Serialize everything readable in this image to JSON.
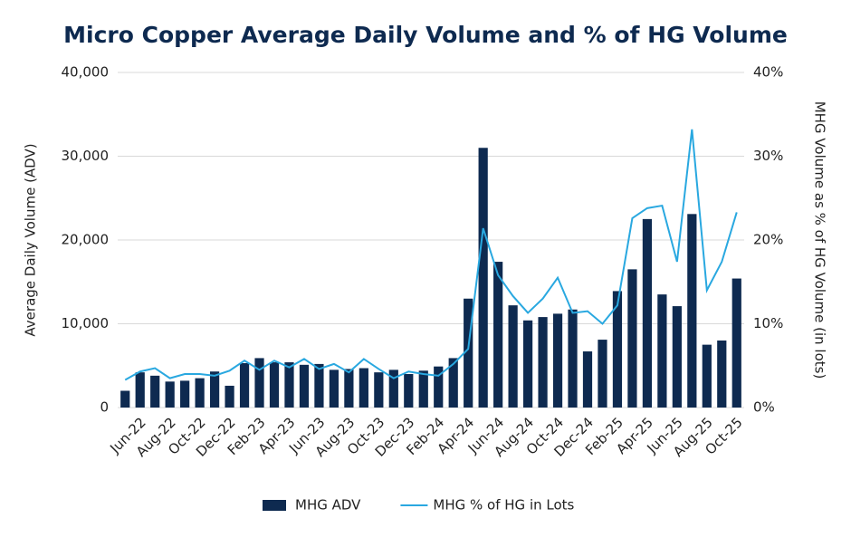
{
  "chart_data": {
    "type": "bar",
    "title": "Micro Copper Average Daily Volume and % of HG Volume",
    "y_label": "Average Daily Volume (ADV)",
    "y2_label": "MHG Volume as % of HG Volume (in lots)",
    "categories": [
      null,
      "Jun-22",
      null,
      "Aug-22",
      null,
      "Oct-22",
      null,
      "Dec-22",
      null,
      "Feb-23",
      null,
      "Apr-23",
      null,
      "Jun-23",
      null,
      "Aug-23",
      null,
      "Oct-23",
      null,
      "Dec-23",
      null,
      "Feb-24",
      null,
      "Apr-24",
      null,
      "Jun-24",
      null,
      "Aug-24",
      null,
      "Oct-24",
      null,
      "Dec-24",
      null,
      "Feb-25",
      null,
      "Apr-25",
      null,
      "Jun-25",
      null,
      "Aug-25",
      null,
      "Oct-25"
    ],
    "series": [
      {
        "name": "MHG ADV",
        "type": "bar",
        "color": "#0e2a50",
        "values": [
          2000,
          4200,
          3800,
          3100,
          3200,
          3500,
          4300,
          2600,
          5300,
          5900,
          5400,
          5400,
          5100,
          5200,
          4500,
          4600,
          4700,
          4200,
          4500,
          4000,
          4400,
          4900,
          5900,
          13000,
          31000,
          17400,
          12200,
          10400,
          10800,
          11200,
          11700,
          6700,
          8100,
          13900,
          16500,
          22500,
          13500,
          12100,
          23100,
          7500,
          8000,
          15400
        ]
      },
      {
        "name": "MHG % of HG in Lots",
        "type": "line",
        "axis": "y2",
        "color": "#29a8e0",
        "values": [
          3.3,
          4.3,
          4.7,
          3.5,
          4.0,
          4.0,
          3.8,
          4.4,
          5.6,
          4.5,
          5.6,
          4.8,
          5.8,
          4.6,
          5.2,
          4.2,
          5.8,
          4.6,
          3.5,
          4.3,
          4.0,
          3.8,
          5.2,
          7.0,
          21.4,
          15.8,
          13.3,
          11.3,
          13.0,
          15.5,
          11.3,
          11.5,
          10.0,
          12.2,
          22.6,
          23.8,
          24.1,
          17.4,
          33.2,
          14.0,
          17.4,
          23.3
        ]
      }
    ],
    "ylim": [
      0,
      40000
    ],
    "yticks": [
      0,
      {
        "value": 10000,
        "label": "10,000"
      },
      {
        "value": 20000,
        "label": "20,000"
      },
      {
        "value": 30000,
        "label": "30,000"
      },
      {
        "value": 40000,
        "label": "40,000"
      }
    ],
    "y2lim": [
      0,
      40
    ],
    "y2ticks": [
      {
        "value": 0,
        "label": "0%"
      },
      {
        "value": 10,
        "label": "10%"
      },
      {
        "value": 20,
        "label": "20%"
      },
      {
        "value": 30,
        "label": "30%"
      },
      {
        "value": 40,
        "label": "40%"
      }
    ],
    "grid": true,
    "legend": "bottom"
  }
}
